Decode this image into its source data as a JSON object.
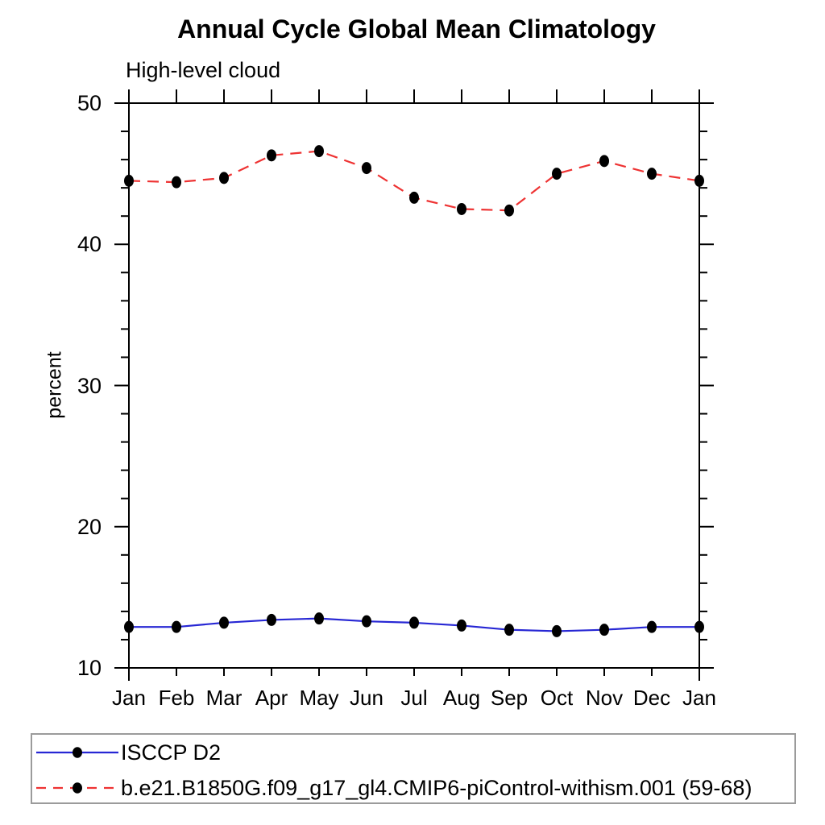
{
  "page": {
    "background": "#ffffff",
    "text_color": "#000000"
  },
  "chart_data": {
    "type": "line",
    "title": "Annual Cycle Global Mean Climatology",
    "subtitle": "High-level cloud",
    "xlabel": "",
    "ylabel": "percent",
    "categories": [
      "Jan",
      "Feb",
      "Mar",
      "Apr",
      "May",
      "Jun",
      "Jul",
      "Aug",
      "Sep",
      "Oct",
      "Nov",
      "Dec",
      "Jan"
    ],
    "ylim": [
      10,
      50
    ],
    "yticks_major": [
      10,
      20,
      30,
      40,
      50
    ],
    "ytick_minor_step": 2,
    "grid": false,
    "legend_position": "bottom-left-box",
    "axis_color": "#000000",
    "marker": {
      "shape": "filled-circle",
      "color": "#000000"
    },
    "series": [
      {
        "name": "ISCCP D2",
        "color": "#2727d4",
        "line_style": "solid",
        "values": [
          12.9,
          12.9,
          13.2,
          13.4,
          13.5,
          13.3,
          13.2,
          13.0,
          12.7,
          12.6,
          12.7,
          12.9,
          12.9
        ]
      },
      {
        "name": "b.e21.B1850G.f09_g17_gl4.CMIP6-piControl-withism.001 (59-68)",
        "color": "#ee3333",
        "line_style": "dashed",
        "values": [
          44.5,
          44.4,
          44.7,
          46.3,
          46.6,
          45.4,
          43.3,
          42.5,
          42.4,
          45.0,
          45.9,
          45.0,
          44.5
        ]
      }
    ]
  },
  "legend": {
    "border_color": "#9b9b9b"
  }
}
